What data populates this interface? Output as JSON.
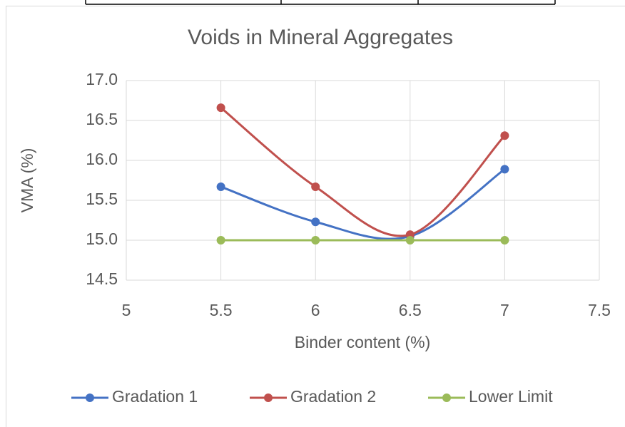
{
  "chart_data": {
    "type": "line",
    "title": "Voids in Mineral Aggregates",
    "x_label": "Binder content (%)",
    "y_label": "VMA (%)",
    "x": [
      5.5,
      6,
      6.5,
      7
    ],
    "series": [
      {
        "name": "Gradation 1",
        "color": "#4472c4",
        "values": [
          15.67,
          15.23,
          15.05,
          15.89
        ]
      },
      {
        "name": "Gradation 2",
        "color": "#c0504d",
        "values": [
          16.66,
          15.67,
          15.07,
          16.31
        ]
      },
      {
        "name": "Lower Limit",
        "color": "#9bbb59",
        "values": [
          15.0,
          15.0,
          15.0,
          15.0
        ]
      }
    ],
    "xlim": [
      5,
      7.5
    ],
    "xticks": [
      5,
      5.5,
      6,
      6.5,
      7,
      7.5
    ],
    "ylim": [
      14.5,
      17
    ],
    "yticks": [
      {
        "value": 14.5,
        "label": "14.5"
      },
      {
        "value": 15,
        "label": "15.0"
      },
      {
        "value": 15.5,
        "label": "15.5"
      },
      {
        "value": 16,
        "label": "16.0"
      },
      {
        "value": 16.5,
        "label": "16.5"
      },
      {
        "value": 17,
        "label": "17.0"
      }
    ],
    "grid": true,
    "smooth": true,
    "legend": "bottom"
  }
}
